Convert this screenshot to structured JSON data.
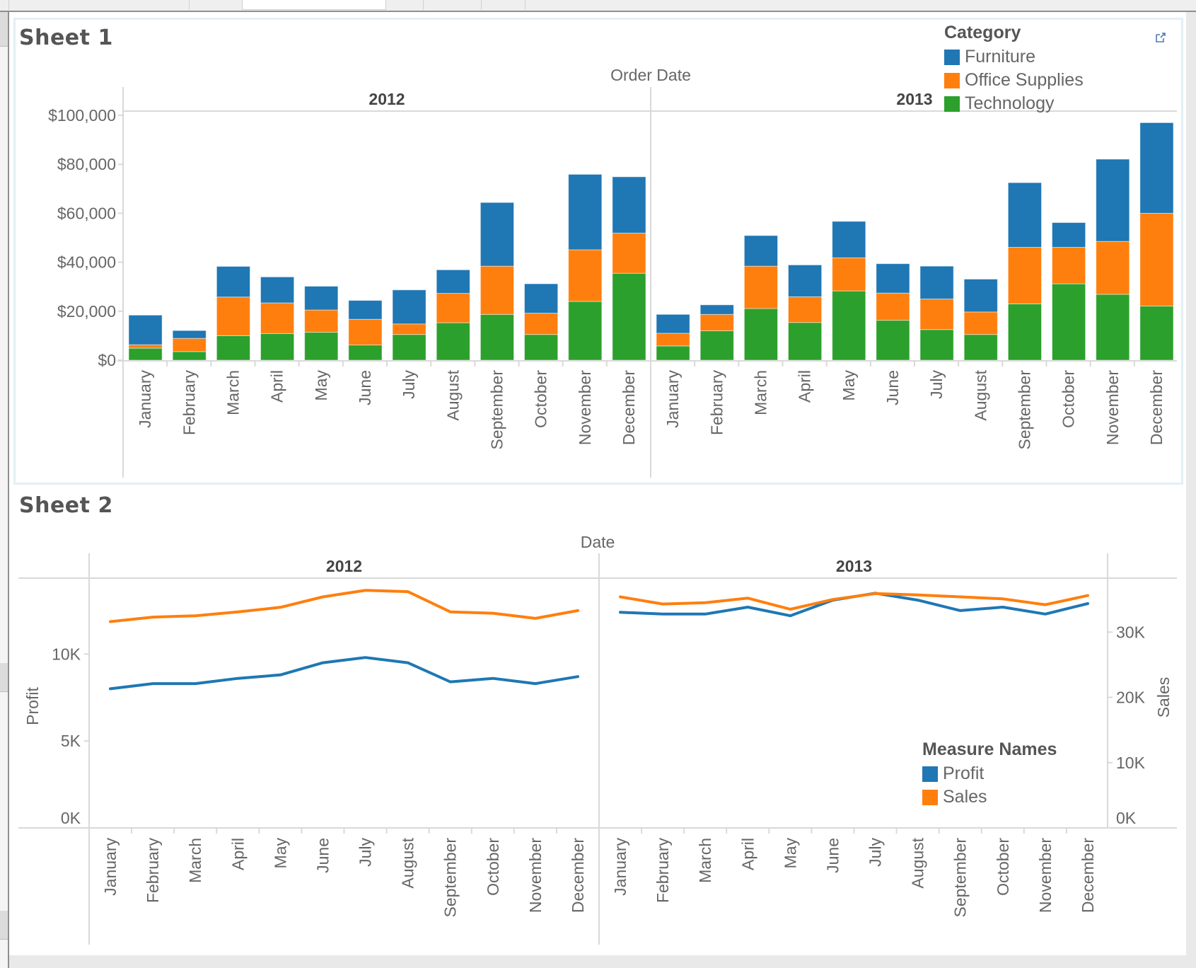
{
  "window": {
    "tabs": [
      "",
      "",
      "",
      "",
      "",
      ""
    ]
  },
  "sheet1": {
    "title": "Sheet 1",
    "expand_icon": "external-link-icon",
    "legend": {
      "title": "Category",
      "items": [
        {
          "label": "Furniture",
          "color": "#1f77b4"
        },
        {
          "label": "Office Supplies",
          "color": "#ff7f0e"
        },
        {
          "label": "Technology",
          "color": "#2ca02c"
        }
      ]
    }
  },
  "sheet2": {
    "title": "Sheet 2",
    "legend": {
      "title": "Measure Names",
      "items": [
        {
          "label": "Profit",
          "color": "#1f77b4"
        },
        {
          "label": "Sales",
          "color": "#ff7f0e"
        }
      ]
    }
  },
  "chart_data": [
    {
      "type": "bar",
      "stacked": true,
      "title": "Sheet 1",
      "column_header": "Order Date",
      "panes": [
        "2012",
        "2013"
      ],
      "categories": [
        "January",
        "February",
        "March",
        "April",
        "May",
        "June",
        "July",
        "August",
        "September",
        "October",
        "November",
        "December"
      ],
      "xlabel": "",
      "ylabel": "",
      "yticks": [
        "$0",
        "$20,000",
        "$40,000",
        "$60,000",
        "$80,000",
        "$100,000"
      ],
      "ytick_values": [
        0,
        20000,
        40000,
        60000,
        80000,
        100000
      ],
      "ylim": [
        0,
        108000
      ],
      "legend_title": "Category",
      "legend_position": "top-right",
      "series": [
        {
          "name": "Technology",
          "color": "#2ca02c",
          "values": {
            "2012": [
              4900,
              3500,
              10000,
              10900,
              11400,
              6200,
              10500,
              15300,
              18700,
              10500,
              24000,
              35500
            ],
            "2013": [
              5800,
              12000,
              21100,
              15400,
              28300,
              16300,
              12500,
              10500,
              23000,
              31200,
              26900,
              22100
            ]
          }
        },
        {
          "name": "Office Supplies",
          "color": "#ff7f0e",
          "values": {
            "2012": [
              1400,
              5400,
              15800,
              12500,
              9100,
              10500,
              4300,
              12000,
              19700,
              8700,
              21100,
              16400
            ],
            "2013": [
              5200,
              6700,
              17300,
              10500,
              13500,
              11100,
              12500,
              9200,
              23100,
              14900,
              21600,
              37900
            ]
          }
        },
        {
          "name": "Furniture",
          "color": "#1f77b4",
          "values": {
            "2012": [
              12100,
              3200,
              12500,
              10600,
              9700,
              7700,
              13900,
              9600,
              26000,
              12000,
              30800,
              23000
            ],
            "2013": [
              7700,
              3900,
              12500,
              13000,
              14900,
              12000,
              13400,
              13400,
              26400,
              10100,
              33600,
              37000
            ]
          }
        }
      ]
    },
    {
      "type": "line",
      "title": "Sheet 2",
      "column_header": "Date",
      "panes": [
        "2012",
        "2013"
      ],
      "categories": [
        "January",
        "February",
        "March",
        "April",
        "May",
        "June",
        "July",
        "August",
        "September",
        "October",
        "November",
        "December"
      ],
      "ylabel_left": "Profit",
      "ylabel_right": "Sales",
      "yticks_left": [
        "0K",
        "5K",
        "10K"
      ],
      "ytick_values_left": [
        0,
        5000,
        10000
      ],
      "ylim_left": [
        0,
        14300
      ],
      "yticks_right": [
        "0K",
        "10K",
        "20K",
        "30K"
      ],
      "ytick_values_right": [
        0,
        10000,
        20000,
        30000
      ],
      "ylim_right": [
        0,
        38300
      ],
      "legend_title": "Measure Names",
      "legend_position": "bottom-right",
      "series": [
        {
          "name": "Profit",
          "axis": "left",
          "color": "#1f77b4",
          "values": {
            "2012": [
              8000,
              8300,
              8300,
              8600,
              8800,
              9500,
              9800,
              9500,
              8400,
              8600,
              8300,
              8700
            ],
            "2013": [
              12400,
              12300,
              12300,
              12700,
              12200,
              13100,
              13500,
              13100,
              12500,
              12700,
              12300,
              12900
            ]
          }
        },
        {
          "name": "Sales",
          "axis": "right",
          "color": "#ff7f0e",
          "values": {
            "2012": [
              31600,
              32300,
              32500,
              33100,
              33800,
              35400,
              36400,
              36200,
              33100,
              32900,
              32100,
              33300
            ],
            "2013": [
              35400,
              34300,
              34500,
              35200,
              33500,
              35000,
              35900,
              35700,
              35400,
              35100,
              34200,
              35600
            ]
          }
        }
      ]
    }
  ]
}
